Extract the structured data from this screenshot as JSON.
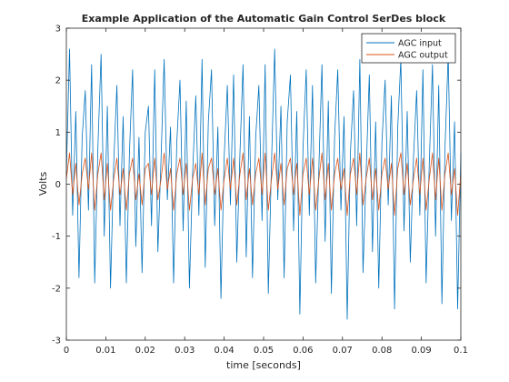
{
  "chart_data": {
    "type": "line",
    "title": "Example Application of the Automatic Gain Control SerDes block",
    "xlabel": "time [seconds]",
    "ylabel": "Volts",
    "xlim": [
      0,
      0.1
    ],
    "ylim": [
      -3,
      3
    ],
    "xticks": [
      0,
      0.01,
      0.02,
      0.03,
      0.04,
      0.05,
      0.06,
      0.07,
      0.08,
      0.09,
      0.1
    ],
    "xtick_labels": [
      "0",
      "0.01",
      "0.02",
      "0.03",
      "0.04",
      "0.05",
      "0.06",
      "0.07",
      "0.08",
      "0.09",
      "0.1"
    ],
    "yticks": [
      -3,
      -2,
      -1,
      0,
      1,
      2,
      3
    ],
    "ytick_labels": [
      "-3",
      "-2",
      "-1",
      "0",
      "1",
      "2",
      "3"
    ],
    "grid": false,
    "legend_position": "top-right",
    "series": [
      {
        "name": "AGC input",
        "color": "#0072BD",
        "x": [
          0,
          0.0008,
          0.0016,
          0.0024,
          0.0032,
          0.004,
          0.0048,
          0.0056,
          0.0064,
          0.0072,
          0.008,
          0.0088,
          0.0096,
          0.0104,
          0.0112,
          0.012,
          0.0128,
          0.0136,
          0.0144,
          0.0152,
          0.016,
          0.0168,
          0.0176,
          0.0184,
          0.0192,
          0.02,
          0.0208,
          0.0216,
          0.0224,
          0.0232,
          0.024,
          0.0248,
          0.0256,
          0.0264,
          0.0272,
          0.028,
          0.0288,
          0.0296,
          0.0304,
          0.0312,
          0.032,
          0.0328,
          0.0336,
          0.0344,
          0.0352,
          0.036,
          0.0368,
          0.0376,
          0.0384,
          0.0392,
          0.04,
          0.0408,
          0.0416,
          0.0424,
          0.0432,
          0.044,
          0.0448,
          0.0456,
          0.0464,
          0.0472,
          0.048,
          0.0488,
          0.0496,
          0.0504,
          0.0512,
          0.052,
          0.0528,
          0.0536,
          0.0544,
          0.0552,
          0.056,
          0.0568,
          0.0576,
          0.0584,
          0.0592,
          0.06,
          0.0608,
          0.0616,
          0.0624,
          0.0632,
          0.064,
          0.0648,
          0.0656,
          0.0664,
          0.0672,
          0.068,
          0.0688,
          0.0696,
          0.0704,
          0.0712,
          0.072,
          0.0728,
          0.0736,
          0.0744,
          0.0752,
          0.076,
          0.0768,
          0.0776,
          0.0784,
          0.0792,
          0.08,
          0.0808,
          0.0816,
          0.0824,
          0.0832,
          0.084,
          0.0848,
          0.0856,
          0.0864,
          0.0872,
          0.088,
          0.0888,
          0.0896,
          0.0904,
          0.0912,
          0.092,
          0.0928,
          0.0936,
          0.0944,
          0.0952,
          0.096,
          0.0968,
          0.0976,
          0.0984,
          0.0992,
          0.1
        ],
        "y": [
          0.2,
          2.6,
          -0.6,
          1.4,
          -1.8,
          0.9,
          1.8,
          -0.5,
          2.3,
          -1.9,
          0.7,
          2.5,
          -1.0,
          1.5,
          -2.0,
          0.4,
          1.9,
          -0.8,
          1.3,
          -1.9,
          0.6,
          2.2,
          -1.2,
          0.9,
          -1.7,
          1.0,
          1.5,
          -0.8,
          2.2,
          -1.3,
          0.5,
          2.4,
          -0.3,
          1.1,
          -1.9,
          0.8,
          2.0,
          -0.9,
          1.6,
          -2.0,
          0.2,
          1.7,
          -0.6,
          2.4,
          -1.6,
          1.2,
          2.2,
          -0.8,
          1.1,
          -2.2,
          0.5,
          1.9,
          -0.4,
          2.1,
          -1.5,
          0.6,
          2.3,
          -1.4,
          1.3,
          -1.8,
          0.9,
          1.9,
          -0.7,
          2.3,
          -2.1,
          0.4,
          2.6,
          -0.3,
          1.5,
          -1.8,
          1.2,
          2.1,
          -0.9,
          1.4,
          -2.5,
          0.7,
          2.2,
          -0.6,
          1.9,
          -1.9,
          0.3,
          2.3,
          -1.1,
          1.6,
          -2.1,
          0.9,
          2.2,
          -0.5,
          1.3,
          -2.6,
          0.6,
          1.8,
          -0.8,
          2.4,
          -1.7,
          0.2,
          2.1,
          -1.3,
          1.2,
          -2.0,
          0.8,
          2.0,
          -0.4,
          1.7,
          -2.4,
          1.1,
          2.4,
          -0.9,
          1.4,
          -1.5,
          0.5,
          1.8,
          -0.6,
          2.2,
          -1.9,
          0.4,
          2.3,
          -1.0,
          1.9,
          -2.3,
          0.7,
          2.5,
          -0.7,
          1.2,
          -2.4,
          0.6
        ]
      },
      {
        "name": "AGC output",
        "color": "#D95319",
        "x": [
          0,
          0.0008,
          0.0016,
          0.0024,
          0.0032,
          0.004,
          0.0048,
          0.0056,
          0.0064,
          0.0072,
          0.008,
          0.0088,
          0.0096,
          0.0104,
          0.0112,
          0.012,
          0.0128,
          0.0136,
          0.0144,
          0.0152,
          0.016,
          0.0168,
          0.0176,
          0.0184,
          0.0192,
          0.02,
          0.0208,
          0.0216,
          0.0224,
          0.0232,
          0.024,
          0.0248,
          0.0256,
          0.0264,
          0.0272,
          0.028,
          0.0288,
          0.0296,
          0.0304,
          0.0312,
          0.032,
          0.0328,
          0.0336,
          0.0344,
          0.0352,
          0.036,
          0.0368,
          0.0376,
          0.0384,
          0.0392,
          0.04,
          0.0408,
          0.0416,
          0.0424,
          0.0432,
          0.044,
          0.0448,
          0.0456,
          0.0464,
          0.0472,
          0.048,
          0.0488,
          0.0496,
          0.0504,
          0.0512,
          0.052,
          0.0528,
          0.0536,
          0.0544,
          0.0552,
          0.056,
          0.0568,
          0.0576,
          0.0584,
          0.0592,
          0.06,
          0.0608,
          0.0616,
          0.0624,
          0.0632,
          0.064,
          0.0648,
          0.0656,
          0.0664,
          0.0672,
          0.068,
          0.0688,
          0.0696,
          0.0704,
          0.0712,
          0.072,
          0.0728,
          0.0736,
          0.0744,
          0.0752,
          0.076,
          0.0768,
          0.0776,
          0.0784,
          0.0792,
          0.08,
          0.0808,
          0.0816,
          0.0824,
          0.0832,
          0.084,
          0.0848,
          0.0856,
          0.0864,
          0.0872,
          0.088,
          0.0888,
          0.0896,
          0.0904,
          0.0912,
          0.092,
          0.0928,
          0.0936,
          0.0944,
          0.0952,
          0.096,
          0.0968,
          0.0976,
          0.0984,
          0.0992,
          0.1
        ],
        "y": [
          0.1,
          0.6,
          -0.2,
          0.4,
          -0.4,
          0.2,
          0.5,
          -0.1,
          0.6,
          -0.5,
          0.2,
          0.6,
          -0.3,
          0.4,
          -0.5,
          0.1,
          0.5,
          -0.2,
          0.3,
          -0.5,
          0.2,
          0.5,
          -0.3,
          0.2,
          -0.4,
          0.3,
          0.4,
          -0.2,
          0.5,
          -0.3,
          0.1,
          0.6,
          -0.1,
          0.3,
          -0.5,
          0.2,
          0.5,
          -0.2,
          0.4,
          -0.5,
          0.1,
          0.4,
          -0.2,
          0.6,
          -0.4,
          0.3,
          0.5,
          -0.2,
          0.3,
          -0.5,
          0.1,
          0.5,
          -0.1,
          0.5,
          -0.4,
          0.2,
          0.6,
          -0.3,
          0.3,
          -0.4,
          0.2,
          0.5,
          -0.2,
          0.6,
          -0.5,
          0.1,
          0.6,
          -0.1,
          0.4,
          -0.4,
          0.3,
          0.5,
          -0.2,
          0.4,
          -0.6,
          0.2,
          0.5,
          -0.2,
          0.5,
          -0.5,
          0.1,
          0.6,
          -0.3,
          0.4,
          -0.5,
          0.2,
          0.5,
          -0.1,
          0.3,
          -0.6,
          0.2,
          0.5,
          -0.2,
          0.6,
          -0.4,
          0.1,
          0.5,
          -0.3,
          0.3,
          -0.5,
          0.2,
          0.5,
          -0.1,
          0.4,
          -0.6,
          0.3,
          0.6,
          -0.2,
          0.4,
          -0.4,
          0.1,
          0.5,
          -0.2,
          0.5,
          -0.5,
          0.1,
          0.6,
          -0.3,
          0.5,
          -0.5,
          0.2,
          0.6,
          -0.2,
          0.3,
          -0.6,
          0.2
        ]
      }
    ]
  }
}
